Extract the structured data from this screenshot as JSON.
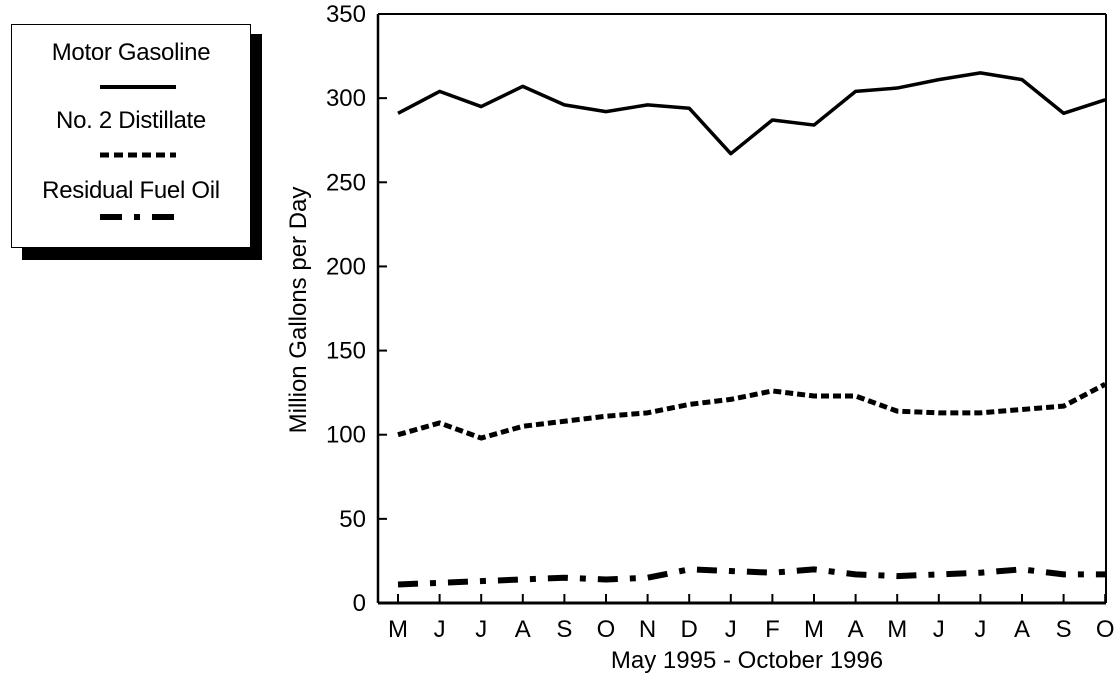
{
  "chart_data": {
    "type": "line",
    "x": [
      "M",
      "J",
      "J",
      "A",
      "S",
      "O",
      "N",
      "D",
      "J",
      "F",
      "M",
      "A",
      "M",
      "J",
      "J",
      "A",
      "S",
      "O"
    ],
    "xlabel": "May 1995 - October 1996",
    "ylabel": "Million Gallons per Day",
    "ylim": [
      0,
      350
    ],
    "yticks": [
      0,
      50,
      100,
      150,
      200,
      250,
      300,
      350
    ],
    "grid": false,
    "legend_position": "top-left, outside plot",
    "series": [
      {
        "name": "Motor Gasoline",
        "style": "solid",
        "values": [
          291,
          304,
          295,
          307,
          296,
          292,
          296,
          294,
          267,
          287,
          284,
          304,
          306,
          311,
          315,
          311,
          291,
          299
        ]
      },
      {
        "name": "No. 2 Distillate",
        "style": "dotted",
        "values": [
          100,
          107,
          98,
          105,
          108,
          111,
          113,
          118,
          121,
          126,
          123,
          123,
          114,
          113,
          113,
          115,
          117,
          130
        ]
      },
      {
        "name": "Residual Fuel Oil",
        "style": "dash-dot",
        "values": [
          11,
          12,
          13,
          14,
          15,
          14,
          15,
          20,
          19,
          18,
          20,
          17,
          16,
          17,
          18,
          20,
          17,
          17
        ]
      }
    ]
  }
}
